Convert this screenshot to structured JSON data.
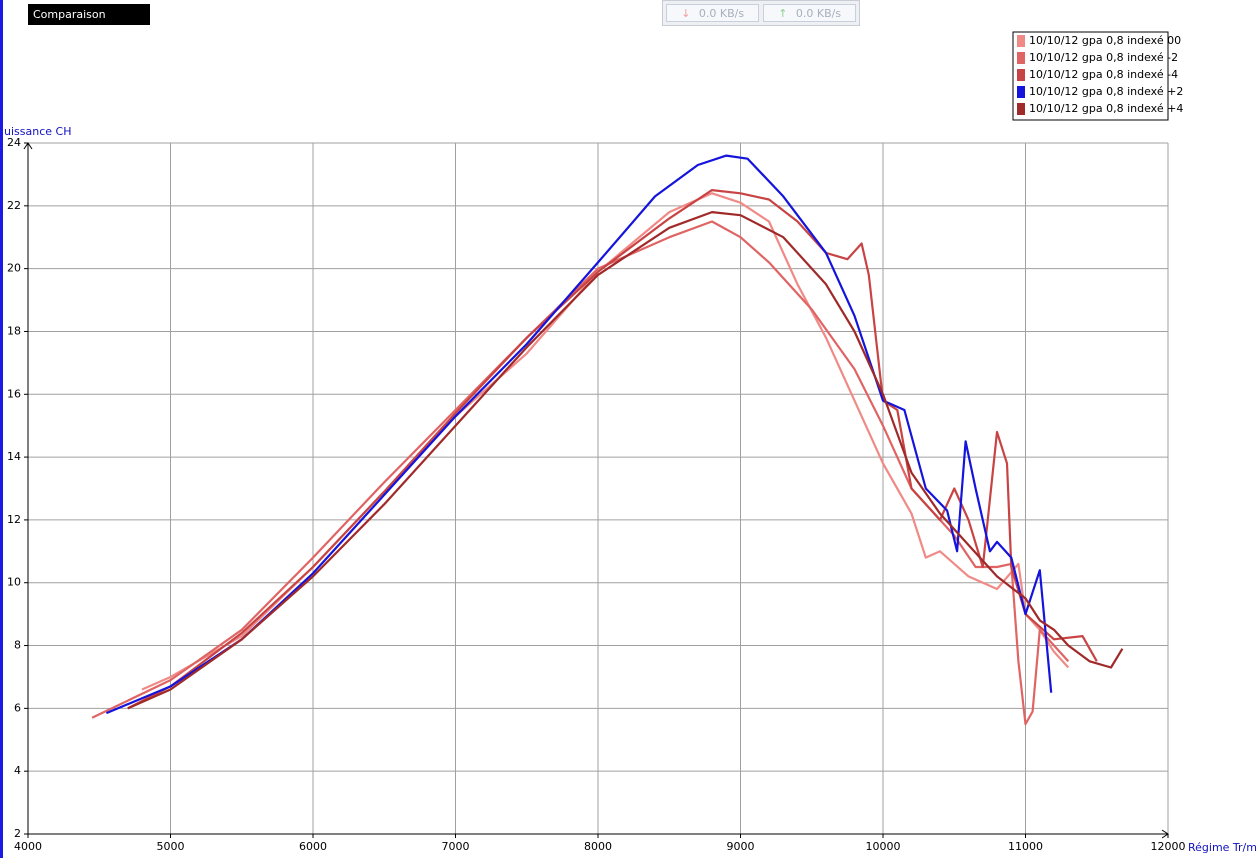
{
  "toolbar": {
    "download": "0.0 KB/s",
    "upload": "0.0 KB/s"
  },
  "chart_data": {
    "type": "line",
    "title": "Comparaison Puissance",
    "y_label": "uissance CH",
    "x_label": "Régime Tr/mn",
    "xlim": [
      4000,
      12000
    ],
    "ylim": [
      2,
      24
    ],
    "xticks": [
      4000,
      5000,
      6000,
      7000,
      8000,
      9000,
      10000,
      11000,
      12000
    ],
    "yticks": [
      2,
      4,
      6,
      8,
      10,
      12,
      14,
      16,
      18,
      20,
      22,
      24
    ],
    "grid": true,
    "legend": "top-right",
    "series": [
      {
        "name": "10/10/12 gpa 0,8 indexé 00",
        "color": "#f08a86",
        "x": [
          4800,
          5000,
          5500,
          6000,
          6500,
          7000,
          7500,
          8000,
          8500,
          8800,
          9000,
          9200,
          9400,
          9600,
          9800,
          10000,
          10200,
          10300,
          10400,
          10600,
          10800,
          10950,
          11000,
          11100,
          11200,
          11300
        ],
        "values": [
          6.6,
          7.0,
          8.3,
          10.5,
          12.9,
          15.3,
          17.3,
          19.9,
          21.8,
          22.4,
          22.1,
          21.5,
          19.5,
          17.8,
          15.8,
          13.8,
          12.2,
          10.8,
          11.0,
          10.2,
          9.8,
          10.6,
          9.0,
          8.5,
          7.8,
          7.3
        ]
      },
      {
        "name": "10/10/12 gpa 0,8 indexé -2",
        "color": "#e06464",
        "x": [
          4450,
          5000,
          5500,
          6000,
          6500,
          7000,
          7500,
          8000,
          8500,
          8800,
          9000,
          9200,
          9500,
          9800,
          10000,
          10200,
          10400,
          10500,
          10650,
          10800,
          10900,
          10950,
          11000,
          11050,
          11100,
          11200,
          11300
        ],
        "values": [
          5.7,
          6.9,
          8.5,
          10.8,
          13.2,
          15.5,
          17.8,
          20.0,
          21.0,
          21.5,
          21.0,
          20.2,
          18.7,
          16.8,
          15.0,
          13.0,
          12.0,
          11.5,
          10.5,
          10.5,
          10.6,
          7.5,
          5.5,
          5.9,
          8.5,
          8.0,
          7.5
        ]
      },
      {
        "name": "10/10/12 gpa 0,8 indexé -4",
        "color": "#c84444",
        "x": [
          4700,
          5000,
          5500,
          6000,
          6500,
          7000,
          7500,
          8000,
          8500,
          8800,
          9000,
          9200,
          9400,
          9600,
          9750,
          9850,
          9900,
          10000,
          10100,
          10200,
          10400,
          10500,
          10600,
          10700,
          10800,
          10870,
          10900,
          11000,
          11200,
          11400,
          11500
        ],
        "values": [
          6.0,
          6.7,
          8.4,
          10.5,
          12.9,
          15.4,
          17.8,
          19.9,
          21.6,
          22.5,
          22.4,
          22.2,
          21.5,
          20.5,
          20.3,
          20.8,
          19.8,
          15.8,
          15.5,
          13.0,
          12.0,
          13.0,
          12.0,
          10.5,
          14.8,
          13.8,
          10.5,
          9.0,
          8.2,
          8.3,
          7.5
        ]
      },
      {
        "name": "10/10/12 gpa 0,8 indexé +2",
        "color": "#1414dc",
        "x": [
          4550,
          5000,
          5500,
          6000,
          6500,
          7000,
          7500,
          8000,
          8400,
          8700,
          8900,
          9050,
          9300,
          9600,
          9800,
          10000,
          10150,
          10300,
          10450,
          10520,
          10580,
          10650,
          10750,
          10800,
          10900,
          11000,
          11100,
          11180
        ],
        "values": [
          5.85,
          6.7,
          8.2,
          10.3,
          12.8,
          15.3,
          17.6,
          20.2,
          22.3,
          23.3,
          23.6,
          23.5,
          22.3,
          20.5,
          18.5,
          15.8,
          15.5,
          13.0,
          12.3,
          11.0,
          14.5,
          13.0,
          11.0,
          11.3,
          10.8,
          9.0,
          10.4,
          6.5
        ]
      },
      {
        "name": "10/10/12 gpa 0,8 indexé +4",
        "color": "#a02a2a",
        "x": [
          4700,
          5000,
          5500,
          6000,
          6500,
          7000,
          7500,
          8000,
          8500,
          8800,
          9000,
          9300,
          9600,
          9800,
          10000,
          10200,
          10400,
          10600,
          10800,
          11000,
          11100,
          11200,
          11300,
          11450,
          11600,
          11680
        ],
        "values": [
          6.0,
          6.6,
          8.2,
          10.2,
          12.5,
          15.0,
          17.5,
          19.8,
          21.3,
          21.8,
          21.7,
          21.0,
          19.5,
          18.0,
          16.0,
          13.5,
          12.2,
          11.2,
          10.2,
          9.5,
          8.8,
          8.5,
          8.0,
          7.5,
          7.3,
          7.9
        ]
      }
    ]
  }
}
